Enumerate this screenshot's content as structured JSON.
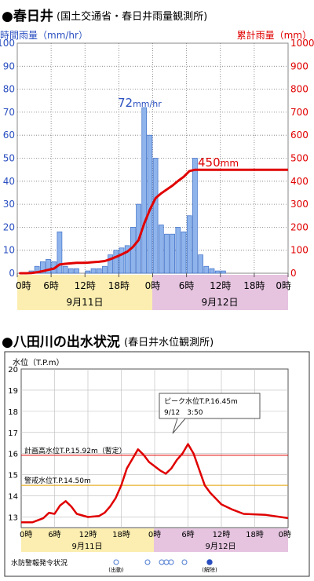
{
  "chart_data": [
    {
      "type": "bar+line",
      "title": "●春日井",
      "subtitle": "(国土交通省・春日井雨量観測所)",
      "ylabel_left": "時間雨量（mm/hr）",
      "ylabel_right": "累計雨量（mm）",
      "ylim_left": [
        0,
        100
      ],
      "ylim_right": [
        0,
        1000
      ],
      "yticks_left": [
        "0",
        "10",
        "20",
        "30",
        "40",
        "50",
        "60",
        "70",
        "80",
        "90",
        "100"
      ],
      "yticks_right": [
        "0",
        "100",
        "200",
        "300",
        "400",
        "500",
        "600",
        "700",
        "800",
        "900",
        "1000"
      ],
      "xticks": [
        "0時",
        "6時",
        "12時",
        "18時",
        "0時",
        "6時",
        "12時",
        "18時",
        "0時"
      ],
      "dates": [
        "9月11日",
        "9月12日"
      ],
      "grid": "dotted",
      "hourly_rain": [
        0,
        0,
        1,
        3,
        5,
        6,
        5,
        18,
        3,
        2,
        2,
        0,
        1,
        2,
        2,
        3,
        8,
        10,
        11,
        12,
        20,
        30,
        72,
        60,
        50,
        21,
        17,
        17,
        20,
        18,
        25,
        50,
        8,
        3,
        2,
        1,
        1,
        0,
        0,
        0,
        0,
        0,
        0,
        0,
        0,
        0,
        0,
        0
      ],
      "peak_label_value": "72",
      "peak_label_unit": "mm/hr",
      "cumulative_rain": [
        0,
        0,
        1,
        4,
        9,
        15,
        20,
        38,
        41,
        43,
        45,
        45,
        46,
        48,
        50,
        53,
        61,
        71,
        82,
        94,
        114,
        144,
        216,
        276,
        326,
        347,
        364,
        381,
        401,
        419,
        444,
        450,
        450,
        450,
        450,
        450,
        450,
        450,
        450,
        450,
        450,
        450,
        450,
        450,
        450,
        450,
        450,
        450
      ],
      "total_label_value": "450",
      "total_label_unit": "mm",
      "colors": {
        "bar": "#8fb4ec",
        "bar_edge": "#3d6fc7",
        "line": "#e00000",
        "left_axis": "#2a4fc0",
        "right_axis": "#e00000",
        "day1_band": "#fbeeb0",
        "day2_band": "#e6c4e0"
      }
    },
    {
      "type": "line",
      "title": "●八田川の出水状況",
      "subtitle": "(春日井水位観測所)",
      "ylabel": "水位（T.P.m）",
      "ylim": [
        12.5,
        20
      ],
      "yticks": [
        "13",
        "14",
        "15",
        "16",
        "17",
        "18",
        "19",
        "20"
      ],
      "xticks": [
        "0時",
        "6時",
        "12時",
        "18時",
        "0時",
        "6時",
        "12時",
        "18時",
        "0時"
      ],
      "dates": [
        "9月11日",
        "9月12日"
      ],
      "water_level": [
        [
          0,
          12.75
        ],
        [
          2,
          12.75
        ],
        [
          4,
          12.95
        ],
        [
          5,
          13.2
        ],
        [
          6,
          13.15
        ],
        [
          7,
          13.55
        ],
        [
          8,
          13.75
        ],
        [
          9,
          13.5
        ],
        [
          10,
          13.15
        ],
        [
          12,
          13.0
        ],
        [
          14,
          13.05
        ],
        [
          15,
          13.2
        ],
        [
          16,
          13.5
        ],
        [
          17,
          13.9
        ],
        [
          18,
          14.5
        ],
        [
          19,
          15.3
        ],
        [
          21,
          16.2
        ],
        [
          22,
          15.95
        ],
        [
          23,
          15.6
        ],
        [
          25,
          15.2
        ],
        [
          26,
          15.05
        ],
        [
          27,
          15.3
        ],
        [
          28,
          15.7
        ],
        [
          29,
          16.0
        ],
        [
          30,
          16.45
        ],
        [
          31,
          16.0
        ],
        [
          33,
          14.5
        ],
        [
          34,
          14.15
        ],
        [
          36,
          13.6
        ],
        [
          38,
          13.35
        ],
        [
          40,
          13.15
        ],
        [
          44,
          13.1
        ],
        [
          48,
          12.95
        ]
      ],
      "flood_plan_level": {
        "label": "計画高水位T.P.15.92m（暫定）",
        "value": 15.92
      },
      "warning_level": {
        "label": "警戒水位T.P.14.50m",
        "value": 14.5
      },
      "peak_callout": {
        "line1": "ピーク水位T.P.16.45m",
        "line2": "9/12　3:50"
      },
      "alert_status_label": "水防警報発令状況",
      "alert_issued_label": "(出動)",
      "alert_cleared_label": "(解除)",
      "colors": {
        "line": "#e00000",
        "plan_line": "#e00000",
        "warn_line": "#e0a000",
        "day1_band": "#fbeeb0",
        "day2_band": "#e6c4e0"
      }
    }
  ]
}
